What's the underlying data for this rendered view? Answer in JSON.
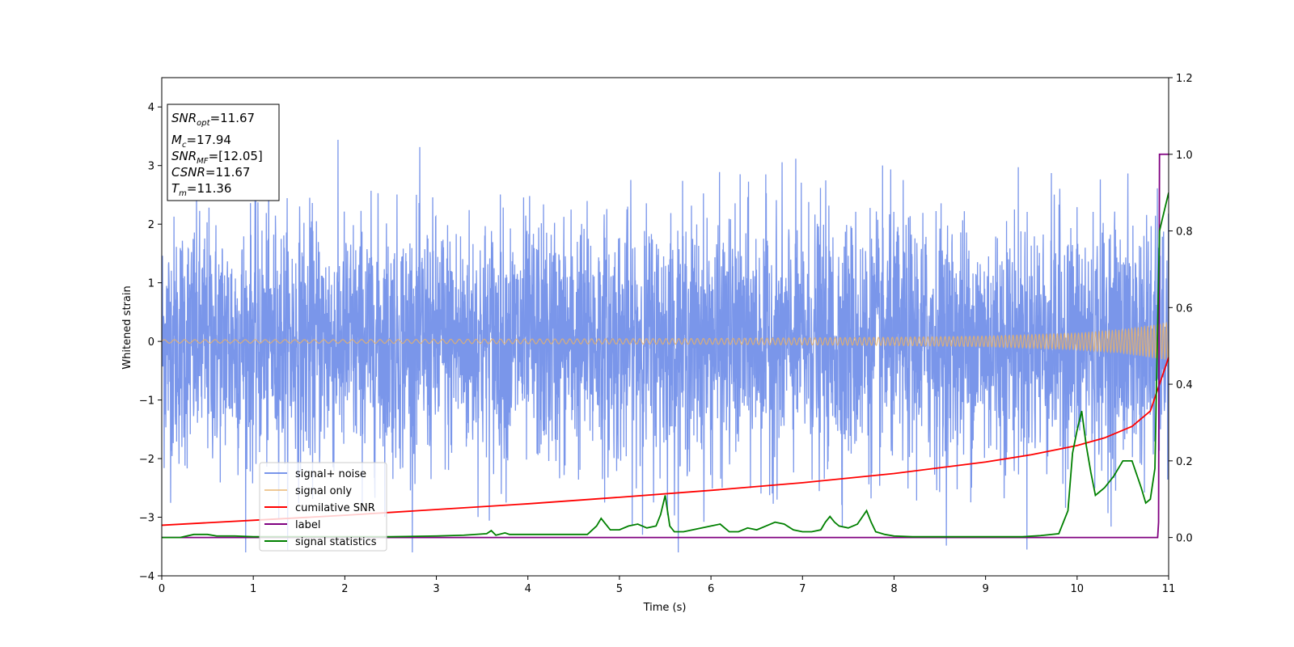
{
  "chart_data": {
    "type": "line",
    "xlabel": "Time (s)",
    "ylabel": "Whitened strain",
    "ylabel_right": "",
    "xlim": [
      0,
      11
    ],
    "ylim": [
      -4,
      4.5
    ],
    "ylim_right": [
      -0.1,
      1.2
    ],
    "xticks": [
      "0",
      "1",
      "2",
      "3",
      "4",
      "5",
      "6",
      "7",
      "8",
      "9",
      "10",
      "11"
    ],
    "yticks": [
      "−4",
      "−3",
      "−2",
      "−1",
      "0",
      "1",
      "2",
      "3",
      "4"
    ],
    "yticks_right": [
      "0.0",
      "0.2",
      "0.4",
      "0.6",
      "0.8",
      "1.0",
      "1.2"
    ],
    "grid": false,
    "legend_placement": "lower-left",
    "annotation": {
      "snr_opt": "11.67",
      "mc": "17.94",
      "snr_mf": "[12.05]",
      "csnr": "11.67",
      "tm": "11.36"
    },
    "series": [
      {
        "name": "signal+ noise",
        "color": "#4169e1",
        "axis": "left",
        "description_range": [
          -3.6,
          4.2
        ],
        "mean": 0
      },
      {
        "name": "signal only",
        "color": "#e8b26a",
        "axis": "left",
        "x": [
          0,
          2,
          4,
          6,
          8,
          9,
          10,
          10.5,
          11
        ],
        "envelope": [
          0.03,
          0.03,
          0.04,
          0.05,
          0.07,
          0.09,
          0.14,
          0.2,
          0.32
        ]
      },
      {
        "name": "cumilative SNR",
        "color": "#ff0000",
        "axis": "right",
        "x": [
          0,
          1,
          2,
          3,
          4,
          5,
          6,
          7,
          8,
          9,
          9.5,
          10,
          10.3,
          10.6,
          10.8,
          11
        ],
        "y": [
          0.032,
          0.045,
          0.058,
          0.073,
          0.088,
          0.105,
          0.123,
          0.143,
          0.167,
          0.197,
          0.216,
          0.24,
          0.26,
          0.29,
          0.33,
          0.47
        ]
      },
      {
        "name": "label",
        "color": "#800080",
        "axis": "right",
        "x": [
          0,
          10.88,
          10.89,
          10.9,
          11
        ],
        "y": [
          0,
          0,
          0.04,
          1.0,
          1.0
        ]
      },
      {
        "name": "signal statistics",
        "color": "#008000",
        "axis": "right",
        "x": [
          0,
          0.2,
          0.35,
          0.5,
          0.6,
          0.8,
          1,
          1.5,
          2,
          2.5,
          3,
          3.3,
          3.55,
          3.6,
          3.65,
          3.75,
          3.8,
          4,
          4.3,
          4.5,
          4.65,
          4.75,
          4.8,
          4.85,
          4.9,
          5,
          5.1,
          5.2,
          5.3,
          5.4,
          5.45,
          5.5,
          5.55,
          5.6,
          5.7,
          5.8,
          5.9,
          6,
          6.1,
          6.2,
          6.3,
          6.4,
          6.5,
          6.6,
          6.7,
          6.8,
          6.9,
          7,
          7.1,
          7.2,
          7.25,
          7.3,
          7.35,
          7.4,
          7.5,
          7.6,
          7.7,
          7.75,
          7.8,
          7.9,
          8,
          8.2,
          8.4,
          8.6,
          8.8,
          9,
          9.2,
          9.4,
          9.6,
          9.8,
          9.9,
          9.95,
          10,
          10.05,
          10.1,
          10.15,
          10.2,
          10.25,
          10.3,
          10.4,
          10.5,
          10.6,
          10.7,
          10.75,
          10.8,
          10.85,
          10.9,
          10.95,
          11
        ],
        "y": [
          0,
          0,
          0.008,
          0.008,
          0.004,
          0.004,
          0.002,
          0.002,
          0.002,
          0.002,
          0.004,
          0.006,
          0.01,
          0.018,
          0.006,
          0.012,
          0.008,
          0.008,
          0.008,
          0.008,
          0.008,
          0.03,
          0.05,
          0.035,
          0.02,
          0.02,
          0.03,
          0.035,
          0.025,
          0.03,
          0.06,
          0.11,
          0.03,
          0.015,
          0.015,
          0.02,
          0.025,
          0.03,
          0.035,
          0.015,
          0.015,
          0.025,
          0.02,
          0.03,
          0.04,
          0.035,
          0.02,
          0.015,
          0.015,
          0.02,
          0.04,
          0.055,
          0.04,
          0.03,
          0.025,
          0.035,
          0.07,
          0.04,
          0.015,
          0.008,
          0.004,
          0.002,
          0.002,
          0.002,
          0.002,
          0.002,
          0.002,
          0.002,
          0.005,
          0.01,
          0.07,
          0.22,
          0.28,
          0.33,
          0.24,
          0.17,
          0.11,
          0.12,
          0.13,
          0.16,
          0.2,
          0.2,
          0.13,
          0.09,
          0.1,
          0.18,
          0.8,
          0.85,
          0.9
        ]
      }
    ]
  }
}
